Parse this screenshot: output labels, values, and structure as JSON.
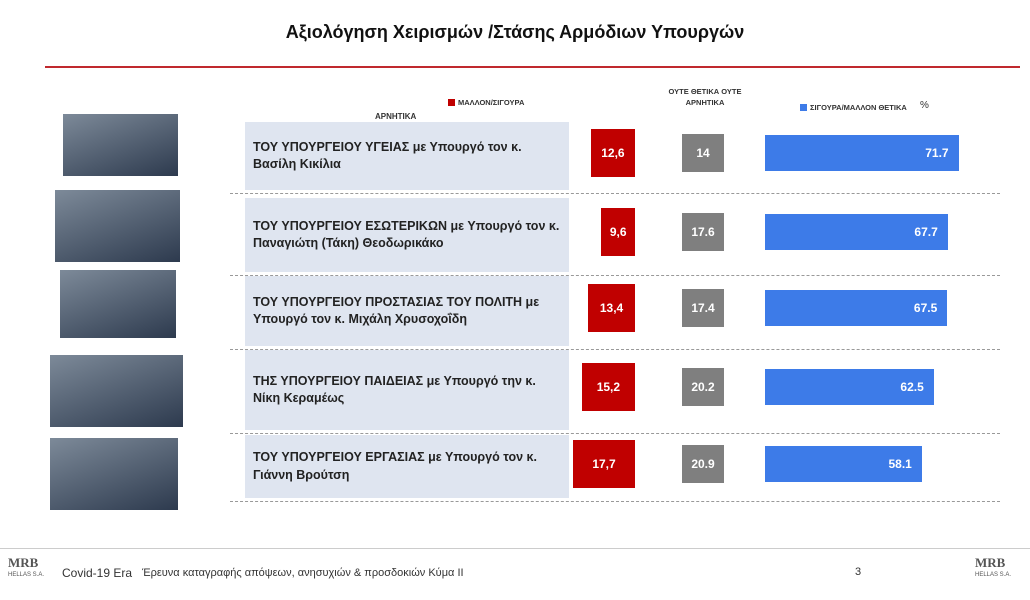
{
  "chart_data": {
    "type": "bar",
    "title": "Αξιολόγηση Χειρισμών /Στάσης Αρμόδιων Υπουργών",
    "negative_label": "ΑΡΝΗΤΙΚΑ",
    "unit_label": "%",
    "categories": [
      "ΤΟΥ ΥΠΟΥΡΓΕΙΟΥ ΥΓΕΙΑΣ με Υπουργό τον κ. Βασίλη Κικίλια",
      "ΤΟΥ ΥΠΟΥΡΓΕΙΟΥ ΕΣΩΤΕΡΙΚΩΝ με Υπουργό τον κ. Παναγιώτη (Τάκη) Θεοδωρικάκο",
      "ΤΟΥ ΥΠΟΥΡΓΕΙΟΥ ΠΡΟΣΤΑΣΙΑΣ ΤΟΥ ΠΟΛΙΤΗ με Υπουργό τον κ. Μιχάλη Χρυσοχοΐδη",
      "ΤΗΣ ΥΠΟΥΡΓΕΙΟΥ ΠΑΙΔΕΙΑΣ με Υπουργό την κ. Νίκη Κεραμέως",
      "ΤΟΥ ΥΠΟΥΡΓΕΙΟΥ ΕΡΓΑΣΙΑΣ με Υπουργό τον κ. Γιάννη Βρούτση"
    ],
    "series": [
      {
        "name": "ΜΑΛΛΟΝ/ΣΙΓΟΥΡΑ",
        "color": "#c00000",
        "values": [
          12.6,
          9.6,
          13.4,
          15.2,
          17.7
        ],
        "value_labels": [
          "12,6",
          "9,6",
          "13,4",
          "15,2",
          "17,7"
        ]
      },
      {
        "name": "ΟΥΤΕ ΘΕΤΙΚΑ ΟΥΤΕ ΑΡΝΗΤΙΚΑ",
        "color": "#7f7f7f",
        "values": [
          14,
          17.6,
          17.4,
          20.2,
          20.9
        ]
      },
      {
        "name": "ΣΙΓΟΥΡΑ/ΜΑΛΛΟΝ ΘΕΤΙΚΑ",
        "color": "#3d7be8",
        "values": [
          71.7,
          67.7,
          67.5,
          62.5,
          58.1
        ]
      }
    ],
    "footer": {
      "project": "Covid-19 Era",
      "description": "Έρευνα καταγραφής απόψεων, ανησυχιών & προσδοκιών Κύμα ΙΙ",
      "page": "3",
      "logo": "MRB",
      "logo_sub": "HELLAS S.A."
    }
  }
}
